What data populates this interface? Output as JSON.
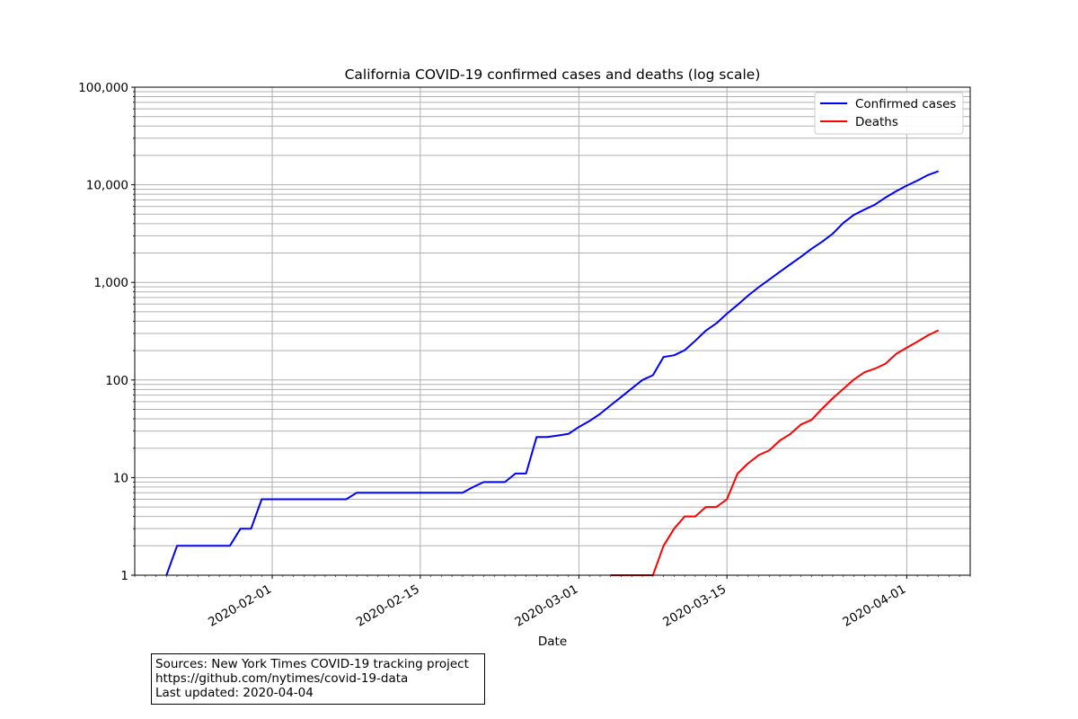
{
  "chart_data": {
    "type": "line",
    "title": "California COVID-19 confirmed cases and deaths (log scale)",
    "xlabel": "Date",
    "ylabel": "",
    "y_scale": "log",
    "ylim": [
      1,
      100000
    ],
    "xlim": [
      "2020-01-19",
      "2020-04-07"
    ],
    "y_ticks": [
      1,
      10,
      100,
      1000,
      10000,
      100000
    ],
    "y_tick_labels": [
      "1",
      "10",
      "100",
      "1,000",
      "10,000",
      "100,000"
    ],
    "x_ticks": [
      "2020-02-01",
      "2020-02-15",
      "2020-03-01",
      "2020-03-15",
      "2020-04-01"
    ],
    "x_tick_labels": [
      "2020-02-01",
      "2020-02-15",
      "2020-03-01",
      "2020-03-15",
      "2020-04-01"
    ],
    "grid": "major and minor",
    "legend_position": "top-right",
    "series": [
      {
        "name": "Confirmed cases",
        "color": "#0000ff",
        "points": [
          [
            "2020-01-22",
            1
          ],
          [
            "2020-01-23",
            2
          ],
          [
            "2020-01-24",
            2
          ],
          [
            "2020-01-25",
            2
          ],
          [
            "2020-01-26",
            2
          ],
          [
            "2020-01-27",
            2
          ],
          [
            "2020-01-28",
            2
          ],
          [
            "2020-01-29",
            3
          ],
          [
            "2020-01-30",
            3
          ],
          [
            "2020-01-31",
            6
          ],
          [
            "2020-02-01",
            6
          ],
          [
            "2020-02-02",
            6
          ],
          [
            "2020-02-03",
            6
          ],
          [
            "2020-02-04",
            6
          ],
          [
            "2020-02-05",
            6
          ],
          [
            "2020-02-06",
            6
          ],
          [
            "2020-02-07",
            6
          ],
          [
            "2020-02-08",
            6
          ],
          [
            "2020-02-09",
            7
          ],
          [
            "2020-02-10",
            7
          ],
          [
            "2020-02-11",
            7
          ],
          [
            "2020-02-12",
            7
          ],
          [
            "2020-02-13",
            7
          ],
          [
            "2020-02-14",
            7
          ],
          [
            "2020-02-15",
            7
          ],
          [
            "2020-02-16",
            7
          ],
          [
            "2020-02-17",
            7
          ],
          [
            "2020-02-18",
            7
          ],
          [
            "2020-02-19",
            7
          ],
          [
            "2020-02-20",
            8
          ],
          [
            "2020-02-21",
            9
          ],
          [
            "2020-02-22",
            9
          ],
          [
            "2020-02-23",
            9
          ],
          [
            "2020-02-24",
            11
          ],
          [
            "2020-02-25",
            11
          ],
          [
            "2020-02-26",
            26
          ],
          [
            "2020-02-27",
            26
          ],
          [
            "2020-02-28",
            27
          ],
          [
            "2020-02-29",
            28
          ],
          [
            "2020-03-01",
            33
          ],
          [
            "2020-03-02",
            38
          ],
          [
            "2020-03-03",
            45
          ],
          [
            "2020-03-04",
            55
          ],
          [
            "2020-03-05",
            67
          ],
          [
            "2020-03-06",
            82
          ],
          [
            "2020-03-07",
            100
          ],
          [
            "2020-03-08",
            112
          ],
          [
            "2020-03-09",
            172
          ],
          [
            "2020-03-10",
            179
          ],
          [
            "2020-03-11",
            202
          ],
          [
            "2020-03-12",
            252
          ],
          [
            "2020-03-13",
            320
          ],
          [
            "2020-03-14",
            381
          ],
          [
            "2020-03-15",
            478
          ],
          [
            "2020-03-16",
            588
          ],
          [
            "2020-03-17",
            732
          ],
          [
            "2020-03-18",
            893
          ],
          [
            "2020-03-19",
            1067
          ],
          [
            "2020-03-20",
            1283
          ],
          [
            "2020-03-21",
            1536
          ],
          [
            "2020-03-22",
            1829
          ],
          [
            "2020-03-23",
            2210
          ],
          [
            "2020-03-24",
            2611
          ],
          [
            "2020-03-25",
            3158
          ],
          [
            "2020-03-26",
            4060
          ],
          [
            "2020-03-27",
            4914
          ],
          [
            "2020-03-28",
            5565
          ],
          [
            "2020-03-29",
            6266
          ],
          [
            "2020-03-30",
            7421
          ],
          [
            "2020-03-31",
            8582
          ],
          [
            "2020-04-01",
            9816
          ],
          [
            "2020-04-02",
            11034
          ],
          [
            "2020-04-03",
            12569
          ],
          [
            "2020-04-04",
            13796
          ]
        ]
      },
      {
        "name": "Deaths",
        "color": "#ff0000",
        "points": [
          [
            "2020-03-04",
            1
          ],
          [
            "2020-03-05",
            1
          ],
          [
            "2020-03-06",
            1
          ],
          [
            "2020-03-07",
            1
          ],
          [
            "2020-03-08",
            1
          ],
          [
            "2020-03-09",
            2
          ],
          [
            "2020-03-10",
            3
          ],
          [
            "2020-03-11",
            4
          ],
          [
            "2020-03-12",
            4
          ],
          [
            "2020-03-13",
            5
          ],
          [
            "2020-03-14",
            5
          ],
          [
            "2020-03-15",
            6
          ],
          [
            "2020-03-16",
            11
          ],
          [
            "2020-03-17",
            14
          ],
          [
            "2020-03-18",
            17
          ],
          [
            "2020-03-19",
            19
          ],
          [
            "2020-03-20",
            24
          ],
          [
            "2020-03-21",
            28
          ],
          [
            "2020-03-22",
            35
          ],
          [
            "2020-03-23",
            39
          ],
          [
            "2020-03-24",
            51
          ],
          [
            "2020-03-25",
            65
          ],
          [
            "2020-03-26",
            81
          ],
          [
            "2020-03-27",
            101
          ],
          [
            "2020-03-28",
            120
          ],
          [
            "2020-03-29",
            131
          ],
          [
            "2020-03-30",
            147
          ],
          [
            "2020-03-31",
            185
          ],
          [
            "2020-04-01",
            214
          ],
          [
            "2020-04-02",
            247
          ],
          [
            "2020-04-03",
            287
          ],
          [
            "2020-04-04",
            323
          ]
        ]
      }
    ]
  },
  "sources": {
    "line1": "Sources: New York Times COVID-19 tracking project",
    "line2": "https://github.com/nytimes/covid-19-data",
    "line3": "Last updated: 2020-04-04"
  }
}
